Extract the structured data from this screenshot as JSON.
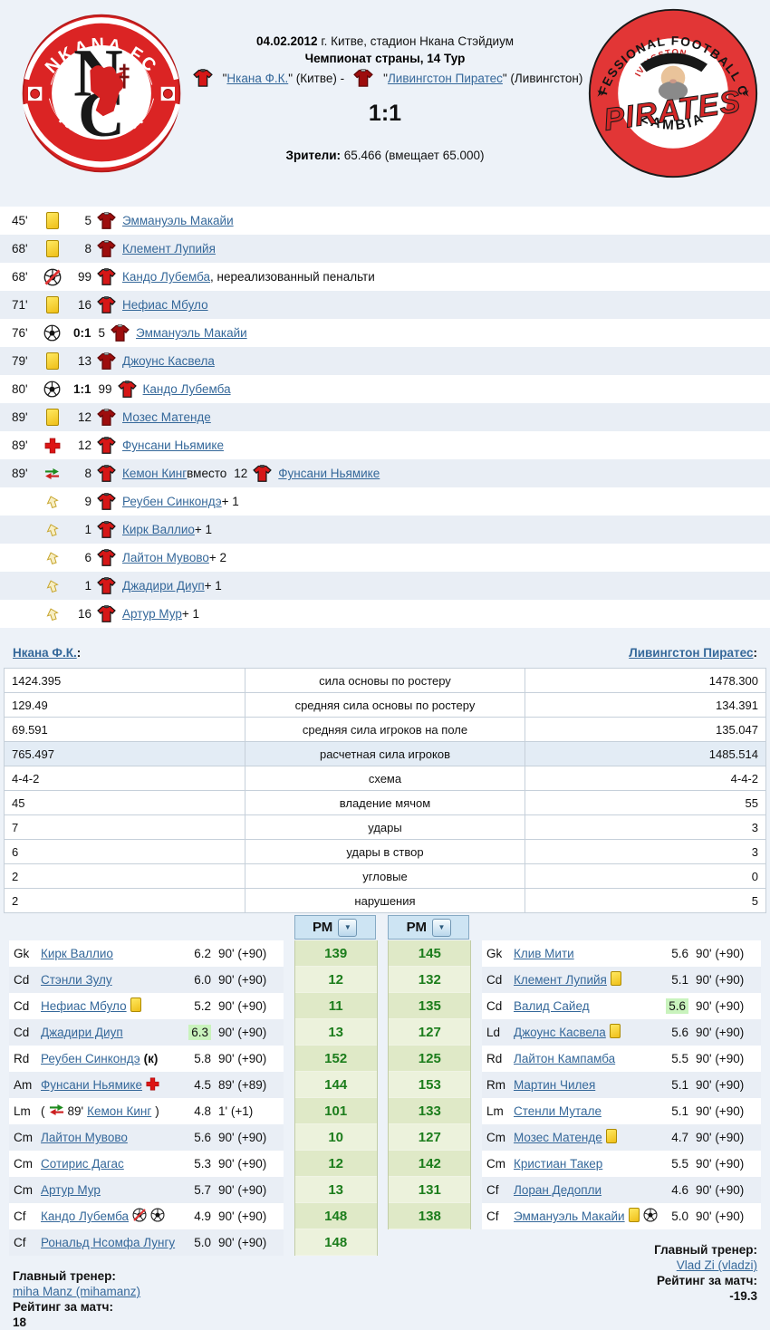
{
  "colors": {
    "link": "#35689a",
    "pm_green": "#1c7d1c",
    "home_shirt": "#d61717",
    "away_shirt": "#9e0d0d",
    "best_rating_bg": "#c9f3bd",
    "accent_red": "#db2424"
  },
  "header": {
    "date": "04.02.2012",
    "venue": " г. Китве, стадион Нкана Стэйдиум",
    "tournament": "Чемпионат страны, 14 Тур",
    "q1": "\"",
    "home_team": "Нкана Ф.К.",
    "mid1": "\" (Китве) - ",
    "q2": "\"",
    "away_team": "Ливингстон Пиратес",
    "mid2": "\" (Ливингстон)",
    "score": "1:1",
    "attendance_label": "Зрители:",
    "attendance_value": " 65.466 (вмещает 65.000)"
  },
  "logos": {
    "nkana": {
      "top": "NKANA FC",
      "bottom": "KALAMPA",
      "monogram_n": "N",
      "monogram_c": "C"
    },
    "pirates": {
      "top": "PROFESSIONAL FOOTBALL CLUB",
      "bottom": "ZAMBIA",
      "inner_small": "LIVINGSTON",
      "inner_big": "PIRATES"
    }
  },
  "events": [
    {
      "minute": "45'",
      "icon": "yellow-card",
      "number": "5",
      "shirt": "away",
      "name": "Эммануэль Макайи"
    },
    {
      "minute": "68'",
      "icon": "yellow-card",
      "number": "8",
      "shirt": "away",
      "name": "Клемент Лупийя"
    },
    {
      "minute": "68'",
      "icon": "missed-penalty",
      "number": "99",
      "shirt": "home",
      "name": "Кандо Лубемба",
      "suffix": ", нереализованный пенальти"
    },
    {
      "minute": "71'",
      "icon": "yellow-card",
      "number": "16",
      "shirt": "home",
      "name": "Нефиас Мбуло"
    },
    {
      "minute": "76'",
      "icon": "goal",
      "score": "0:1",
      "number": "5",
      "shirt": "away",
      "name": "Эммануэль Макайи"
    },
    {
      "minute": "79'",
      "icon": "yellow-card",
      "number": "13",
      "shirt": "away",
      "name": "Джоунс Касвела"
    },
    {
      "minute": "80'",
      "icon": "goal",
      "score": "1:1",
      "number": "99",
      "shirt": "home",
      "name": "Кандо Лубемба"
    },
    {
      "minute": "89'",
      "icon": "yellow-card",
      "number": "12",
      "shirt": "away",
      "name": "Мозес Матенде"
    },
    {
      "minute": "89'",
      "icon": "injury",
      "number": "12",
      "shirt": "home",
      "name": "Фунсани Ньямике"
    },
    {
      "minute": "89'",
      "icon": "substitution",
      "number": "8",
      "shirt": "home",
      "name": "Кемон Кинг",
      "mid": " вместо ",
      "number2": "12",
      "shirt2": "home",
      "name2": "Фунсани Ньямике"
    },
    {
      "minute": "",
      "icon": "bonus",
      "number": "9",
      "shirt": "home",
      "name": "Реубен Синкондэ",
      "suffix": " + 1"
    },
    {
      "minute": "",
      "icon": "bonus",
      "number": "1",
      "shirt": "home",
      "name": "Кирк Валлио",
      "suffix": " + 1"
    },
    {
      "minute": "",
      "icon": "bonus",
      "number": "6",
      "shirt": "home",
      "name": "Лайтон Мувово",
      "suffix": " + 2"
    },
    {
      "minute": "",
      "icon": "bonus",
      "number": "1",
      "shirt": "home",
      "name": "Джадири Диуп",
      "suffix": " + 1"
    },
    {
      "minute": "",
      "icon": "bonus",
      "number": "16",
      "shirt": "home",
      "name": "Артур Мур",
      "suffix": " + 1"
    }
  ],
  "stats": {
    "home_team": "Нкана Ф.К.",
    "away_team": "Ливингстон Пиратес",
    "colon": ":",
    "rows": [
      {
        "home": "1424.395",
        "label": "сила основы по ростеру",
        "away": "1478.300"
      },
      {
        "home": "129.49",
        "label": "средняя сила основы по ростеру",
        "away": "134.391"
      },
      {
        "home": "69.591",
        "label": "средняя сила игроков на поле",
        "away": "135.047"
      },
      {
        "home": "765.497",
        "label": "расчетная сила игроков",
        "away": "1485.514",
        "highlight": true
      },
      {
        "home": "4-4-2",
        "label": "схема",
        "away": "4-4-2"
      },
      {
        "home": "45",
        "label": "владение мячом",
        "away": "55"
      },
      {
        "home": "7",
        "label": "удары",
        "away": "3"
      },
      {
        "home": "6",
        "label": "удары в створ",
        "away": "3"
      },
      {
        "home": "2",
        "label": "угловые",
        "away": "0"
      },
      {
        "home": "2",
        "label": "нарушения",
        "away": "5"
      }
    ]
  },
  "pm": {
    "header": "РМ",
    "dropdown_icon": "dropdown-arrow",
    "left": [
      "139",
      "12",
      "11",
      "13",
      "152",
      "144",
      "101",
      "10",
      "12",
      "13",
      "148",
      "148"
    ],
    "right": [
      "145",
      "132",
      "135",
      "127",
      "125",
      "153",
      "133",
      "127",
      "142",
      "131",
      "138"
    ]
  },
  "home_roster": [
    {
      "pos": "Gk",
      "name": "Кирк Валлио",
      "rating": "6.2",
      "minutes": "90' (+90)"
    },
    {
      "pos": "Cd",
      "name": "Стэнли Зулу",
      "rating": "6.0",
      "minutes": "90' (+90)"
    },
    {
      "pos": "Cd",
      "name": "Нефиас Мбуло",
      "icons": [
        "yellow-card"
      ],
      "rating": "5.2",
      "minutes": "90' (+90)"
    },
    {
      "pos": "Cd",
      "name": "Джадири Диуп",
      "rating": "6.3",
      "best": true,
      "minutes": "90' (+90)"
    },
    {
      "pos": "Rd",
      "name": "Реубен Синкондэ",
      "captain": " (к)",
      "rating": "5.8",
      "minutes": "90' (+90)"
    },
    {
      "pos": "Am",
      "name": "Фунсани Ньямике",
      "icons": [
        "injury"
      ],
      "rating": "4.5",
      "minutes": "89' (+89)"
    },
    {
      "pos": "Lm",
      "sub_minute": "89'",
      "name": "Кемон Кинг",
      "rating": "4.8",
      "minutes": "1' (+1)"
    },
    {
      "pos": "Cm",
      "name": "Лайтон Мувово",
      "rating": "5.6",
      "minutes": "90' (+90)"
    },
    {
      "pos": "Cm",
      "name": "Сотирис Дагас",
      "rating": "5.3",
      "minutes": "90' (+90)"
    },
    {
      "pos": "Cm",
      "name": "Артур Мур",
      "rating": "5.7",
      "minutes": "90' (+90)"
    },
    {
      "pos": "Cf",
      "name": "Кандо Лубемба",
      "icons": [
        "missed-penalty",
        "goal"
      ],
      "rating": "4.9",
      "minutes": "90' (+90)"
    },
    {
      "pos": "Cf",
      "name": "Рональд Нсомфа Лунгу",
      "rating": "5.0",
      "minutes": "90' (+90)"
    }
  ],
  "away_roster": [
    {
      "pos": "Gk",
      "name": "Клив Мити",
      "rating": "5.6",
      "minutes": "90' (+90)"
    },
    {
      "pos": "Cd",
      "name": "Клемент Лупийя",
      "icons": [
        "yellow-card"
      ],
      "rating": "5.1",
      "minutes": "90' (+90)"
    },
    {
      "pos": "Cd",
      "name": "Валид Сайед",
      "rating": "5.6",
      "best": true,
      "minutes": "90' (+90)"
    },
    {
      "pos": "Ld",
      "name": "Джоунс Касвела",
      "icons": [
        "yellow-card"
      ],
      "rating": "5.6",
      "minutes": "90' (+90)"
    },
    {
      "pos": "Rd",
      "name": "Лайтон Кампамба",
      "rating": "5.5",
      "minutes": "90' (+90)"
    },
    {
      "pos": "Rm",
      "name": "Мартин Чилея",
      "rating": "5.1",
      "minutes": "90' (+90)"
    },
    {
      "pos": "Lm",
      "name": "Стенли Мутале",
      "rating": "5.1",
      "minutes": "90' (+90)"
    },
    {
      "pos": "Cm",
      "name": "Мозес Матенде",
      "icons": [
        "yellow-card"
      ],
      "rating": "4.7",
      "minutes": "90' (+90)"
    },
    {
      "pos": "Cm",
      "name": "Кристиан Такер",
      "rating": "5.5",
      "minutes": "90' (+90)"
    },
    {
      "pos": "Cf",
      "name": "Лоран Дедопли",
      "rating": "4.6",
      "minutes": "90' (+90)"
    },
    {
      "pos": "Cf",
      "name": "Эммануэль Макайи",
      "icons": [
        "yellow-card",
        "goal"
      ],
      "rating": "5.0",
      "minutes": "90' (+90)"
    }
  ],
  "footer": {
    "home": {
      "coach_label": "Главный тренер:",
      "coach": "miha Manz (mihamanz)",
      "rating_label": "Рейтинг за матч:",
      "rating": "18"
    },
    "away": {
      "coach_label": "Главный тренер:",
      "coach": "Vlad Zi (vladzi)",
      "rating_label": "Рейтинг за матч:",
      "rating": "-19.3"
    }
  }
}
